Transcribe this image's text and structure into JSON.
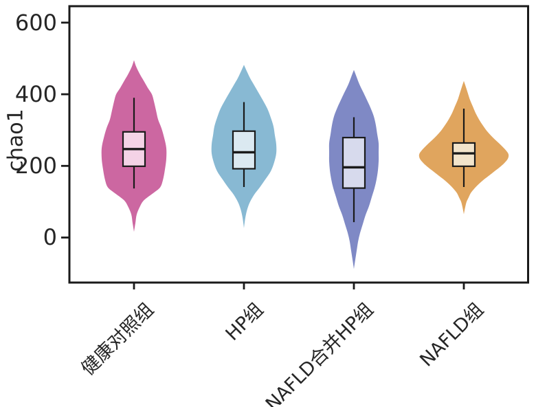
{
  "figure": {
    "background": "#ffffff",
    "axis_color": "#1a1a1a",
    "text_color": "#262626"
  },
  "chart_data": {
    "type": "violin",
    "title": "",
    "xlabel": "",
    "ylabel": "chao1",
    "ylim": [
      -125,
      645
    ],
    "yticks": [
      600,
      400,
      200,
      0
    ],
    "grid": false,
    "legend": "none",
    "categories": [
      "健康对照组",
      "HP组",
      "NAFLD合并HP组",
      "NAFLD组"
    ],
    "groups": [
      {
        "label": "健康对照组",
        "violin_color": "#cc67a1",
        "box_fill": "#f4d3e6",
        "box": {
          "whisker_low": 137,
          "q1": 199,
          "median": 247,
          "q3": 295,
          "whisker_high": 390
        },
        "violin_range": [
          16,
          495
        ],
        "density_profile": [
          [
            495,
            0
          ],
          [
            478,
            3
          ],
          [
            458,
            8
          ],
          [
            438,
            14
          ],
          [
            418,
            20
          ],
          [
            400,
            26
          ],
          [
            380,
            29
          ],
          [
            355,
            32
          ],
          [
            330,
            35
          ],
          [
            305,
            40
          ],
          [
            278,
            44
          ],
          [
            250,
            47
          ],
          [
            220,
            47
          ],
          [
            190,
            45
          ],
          [
            160,
            42
          ],
          [
            140,
            38
          ],
          [
            124,
            28
          ],
          [
            105,
            15
          ],
          [
            88,
            9
          ],
          [
            65,
            4
          ],
          [
            40,
            2
          ],
          [
            16,
            0
          ]
        ]
      },
      {
        "label": "HP组",
        "violin_color": "#88b9d3",
        "box_fill": "#dbe9f1",
        "box": {
          "whisker_low": 141,
          "q1": 192,
          "median": 238,
          "q3": 297,
          "whisker_high": 378
        },
        "violin_range": [
          26,
          482
        ],
        "density_profile": [
          [
            482,
            0
          ],
          [
            465,
            4
          ],
          [
            445,
            9
          ],
          [
            425,
            15
          ],
          [
            405,
            21
          ],
          [
            385,
            27
          ],
          [
            360,
            34
          ],
          [
            335,
            39
          ],
          [
            310,
            43
          ],
          [
            285,
            45
          ],
          [
            260,
            47
          ],
          [
            235,
            47
          ],
          [
            210,
            44
          ],
          [
            185,
            39
          ],
          [
            162,
            31
          ],
          [
            140,
            23
          ],
          [
            120,
            15
          ],
          [
            100,
            9
          ],
          [
            80,
            5
          ],
          [
            55,
            2
          ],
          [
            26,
            0
          ]
        ]
      },
      {
        "label": "NAFLD合并HP组",
        "violin_color": "#7f89c5",
        "box_fill": "#d7daed",
        "box": {
          "whisker_low": 43,
          "q1": 138,
          "median": 196,
          "q3": 279,
          "whisker_high": 336
        },
        "violin_range": [
          -88,
          468
        ],
        "density_profile": [
          [
            468,
            0
          ],
          [
            448,
            4
          ],
          [
            428,
            8
          ],
          [
            408,
            13
          ],
          [
            388,
            18
          ],
          [
            363,
            24
          ],
          [
            338,
            29
          ],
          [
            313,
            32
          ],
          [
            288,
            34
          ],
          [
            263,
            36
          ],
          [
            238,
            36
          ],
          [
            213,
            36
          ],
          [
            188,
            35
          ],
          [
            163,
            33
          ],
          [
            138,
            30
          ],
          [
            113,
            26
          ],
          [
            88,
            22
          ],
          [
            63,
            17
          ],
          [
            38,
            13
          ],
          [
            13,
            9
          ],
          [
            -12,
            6
          ],
          [
            -37,
            4
          ],
          [
            -62,
            2
          ],
          [
            -88,
            0
          ]
        ]
      },
      {
        "label": "NAFLD组",
        "violin_color": "#e0a55e",
        "box_fill": "#f2e4cb",
        "box": {
          "whisker_low": 141,
          "q1": 199,
          "median": 235,
          "q3": 264,
          "whisker_high": 360
        },
        "violin_range": [
          65,
          437
        ],
        "density_profile": [
          [
            437,
            0
          ],
          [
            420,
            3
          ],
          [
            402,
            6
          ],
          [
            384,
            9
          ],
          [
            366,
            13
          ],
          [
            348,
            17
          ],
          [
            330,
            22
          ],
          [
            312,
            28
          ],
          [
            294,
            35
          ],
          [
            276,
            44
          ],
          [
            258,
            54
          ],
          [
            244,
            61
          ],
          [
            232,
            65
          ],
          [
            220,
            64
          ],
          [
            208,
            59
          ],
          [
            196,
            52
          ],
          [
            184,
            44
          ],
          [
            172,
            36
          ],
          [
            160,
            28
          ],
          [
            148,
            21
          ],
          [
            136,
            15
          ],
          [
            124,
            10
          ],
          [
            112,
            7
          ],
          [
            100,
            4
          ],
          [
            85,
            2
          ],
          [
            65,
            0
          ]
        ]
      }
    ]
  }
}
